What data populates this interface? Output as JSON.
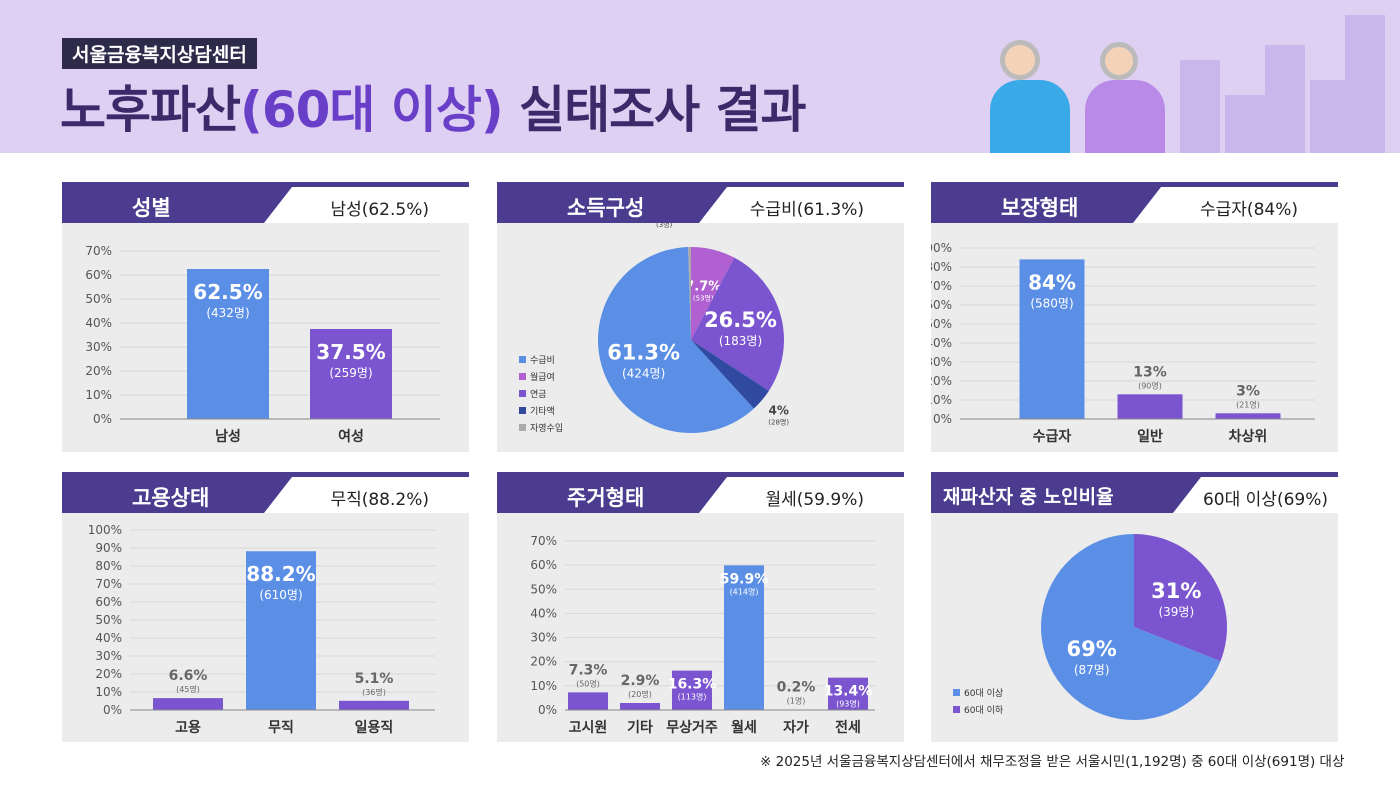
{
  "header": {
    "org": "서울금융복지상담센터",
    "title_a": "노후파산",
    "title_b": "(60대 이상)",
    "title_c": " 실태조사 결과"
  },
  "footnote": "※ 2025년 서울금융복지상담센터에서 채무조정을 받은 서울시민(1,192명) 중 60대 이상(691명) 대상",
  "colors": {
    "blue": "#5b8fe6",
    "purple": "#7b55d0",
    "pink": "#b060d0",
    "navy": "#2f4aa0",
    "gray": "#aaaaaa",
    "header_dark": "#4b3c8f"
  },
  "chart_data": [
    {
      "id": "gender",
      "type": "bar",
      "title": "성별",
      "summary": "남성(62.5%)",
      "categories": [
        "남성",
        "여성"
      ],
      "values": [
        62.5,
        37.5
      ],
      "labels": [
        "62.5%",
        "37.5%"
      ],
      "counts": [
        "(432명)",
        "(259명)"
      ],
      "colors": [
        "#5b8fe6",
        "#7b55d0"
      ],
      "ylim": [
        0,
        70
      ],
      "yticks": [
        "0%",
        "10%",
        "20%",
        "30%",
        "40%",
        "50%",
        "60%",
        "70%"
      ],
      "grid": true
    },
    {
      "id": "income",
      "type": "pie",
      "title": "소득구성",
      "summary": "수급비(61.3%)",
      "categories": [
        "월급여",
        "연금",
        "기타액",
        "수급비",
        "자영수입"
      ],
      "values": [
        7.7,
        26.5,
        4,
        61.3,
        0.5
      ],
      "labels": [
        "7.7%",
        "26.5%",
        "4%",
        "61.3%",
        "0.5%"
      ],
      "counts": [
        "(53명)",
        "(183명)",
        "(28명)",
        "(424명)",
        "(3명)"
      ],
      "colors": [
        "#b060d0",
        "#7b55d0",
        "#2f4aa0",
        "#5b8fe6",
        "#aaaaaa"
      ],
      "legend": [
        "수급비",
        "월급여",
        "연금",
        "기타액",
        "자영수입"
      ],
      "legend_colors": [
        "#5b8fe6",
        "#b060d0",
        "#7b55d0",
        "#2f4aa0",
        "#aaaaaa"
      ],
      "legend_position": "bottom-left"
    },
    {
      "id": "protection",
      "type": "bar",
      "title": "보장형태",
      "summary": "수급자(84%)",
      "categories": [
        "수급자",
        "일반",
        "차상위"
      ],
      "values": [
        84,
        13,
        3
      ],
      "labels": [
        "84%",
        "13%",
        "3%"
      ],
      "counts": [
        "(580명)",
        "(90명)",
        "(21명)"
      ],
      "colors": [
        "#5b8fe6",
        "#7b55d0",
        "#7b55d0"
      ],
      "ylim": [
        0,
        90
      ],
      "yticks": [
        "0%",
        "10%",
        "20%",
        "30%",
        "40%",
        "50%",
        "60%",
        "70%",
        "80%",
        "90%"
      ],
      "grid": true
    },
    {
      "id": "employment",
      "type": "bar",
      "title": "고용상태",
      "summary": "무직(88.2%)",
      "categories": [
        "고용",
        "무직",
        "일용직"
      ],
      "values": [
        6.6,
        88.2,
        5.1
      ],
      "labels": [
        "6.6%",
        "88.2%",
        "5.1%"
      ],
      "counts": [
        "(45명)",
        "(610명)",
        "(36명)"
      ],
      "colors": [
        "#7b55d0",
        "#5b8fe6",
        "#7b55d0"
      ],
      "ylim": [
        0,
        100
      ],
      "yticks": [
        "0%",
        "10%",
        "20%",
        "30%",
        "40%",
        "50%",
        "60%",
        "70%",
        "80%",
        "90%",
        "100%"
      ],
      "grid": true
    },
    {
      "id": "housing",
      "type": "bar",
      "title": "주거형태",
      "summary": "월세(59.9%)",
      "categories": [
        "고시원",
        "기타",
        "무상거주",
        "월세",
        "자가",
        "전세"
      ],
      "values": [
        7.3,
        2.9,
        16.3,
        59.9,
        0.2,
        13.4
      ],
      "labels": [
        "7.3%",
        "2.9%",
        "16.3%",
        "59.9%",
        "0.2%",
        "13.4%"
      ],
      "counts": [
        "(50명)",
        "(20명)",
        "(113명)",
        "(414명)",
        "(1명)",
        "(93명)"
      ],
      "colors": [
        "#7b55d0",
        "#7b55d0",
        "#7b55d0",
        "#5b8fe6",
        "#7b55d0",
        "#7b55d0"
      ],
      "ylim": [
        0,
        70
      ],
      "yticks": [
        "0%",
        "10%",
        "20%",
        "30%",
        "40%",
        "50%",
        "60%",
        "70%"
      ],
      "grid": true
    },
    {
      "id": "elderly",
      "type": "pie",
      "title": "재파산자 중 노인비율",
      "summary": "60대 이상(69%)",
      "categories": [
        "60대 이하",
        "60대 이상"
      ],
      "values": [
        31,
        69
      ],
      "labels": [
        "31%",
        "69%"
      ],
      "counts": [
        "(39명)",
        "(87명)"
      ],
      "colors": [
        "#7b55d0",
        "#5b8fe6"
      ],
      "legend": [
        "60대 이상",
        "60대 이하"
      ],
      "legend_colors": [
        "#5b8fe6",
        "#7b55d0"
      ],
      "legend_position": "bottom-left"
    }
  ]
}
